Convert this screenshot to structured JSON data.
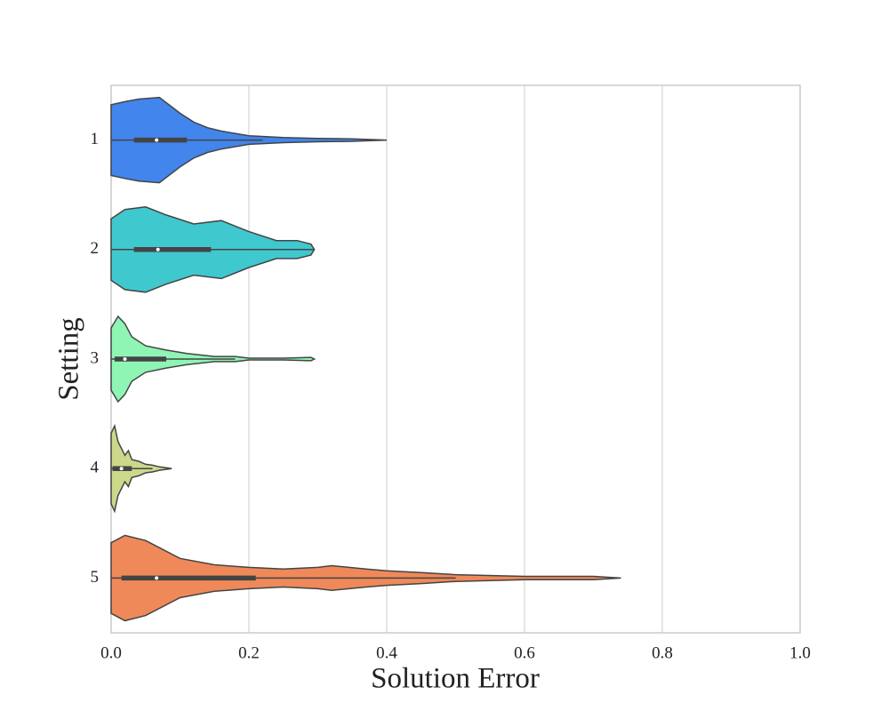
{
  "chart_data": {
    "type": "violin",
    "orientation": "horizontal",
    "xlabel": "Solution Error",
    "ylabel": "Setting",
    "categories": [
      "1",
      "2",
      "3",
      "4",
      "5"
    ],
    "xlim": [
      0,
      1
    ],
    "xticks": [
      {
        "value": 0,
        "label": "0.0"
      },
      {
        "value": 0.2,
        "label": "0.2"
      },
      {
        "value": 0.4,
        "label": "0.4"
      },
      {
        "value": 0.6,
        "label": "0.6"
      },
      {
        "value": 0.8,
        "label": "0.8"
      },
      {
        "value": 1,
        "label": "1.0"
      }
    ],
    "grid": true,
    "violins": [
      {
        "color": "#4285ec",
        "x": [
          0,
          0.02,
          0.04,
          0.07,
          0.1,
          0.12,
          0.14,
          0.16,
          0.2,
          0.25,
          0.3,
          0.35,
          0.4
        ],
        "density": [
          0.83,
          0.9,
          0.96,
          1,
          0.63,
          0.42,
          0.29,
          0.21,
          0.1,
          0.06,
          0.04,
          0.03,
          0
        ],
        "whisker": [
          0,
          0.22
        ],
        "q1": 0.033,
        "median": 0.066,
        "q3": 0.11
      },
      {
        "color": "#40c8cf",
        "x": [
          0,
          0.02,
          0.05,
          0.08,
          0.12,
          0.16,
          0.2,
          0.24,
          0.27,
          0.29,
          0.295
        ],
        "density": [
          0.72,
          0.94,
          1,
          0.81,
          0.6,
          0.68,
          0.42,
          0.21,
          0.21,
          0.13,
          0
        ],
        "whisker": [
          0,
          0.295
        ],
        "q1": 0.033,
        "median": 0.068,
        "q3": 0.145
      },
      {
        "color": "#8ef5b4",
        "x": [
          0,
          0.01,
          0.02,
          0.03,
          0.05,
          0.08,
          0.11,
          0.15,
          0.18,
          0.2,
          0.25,
          0.29,
          0.295
        ],
        "density": [
          0.73,
          1,
          0.83,
          0.52,
          0.31,
          0.21,
          0.13,
          0.06,
          0.06,
          0.02,
          0.02,
          0.04,
          0
        ],
        "whisker": [
          0,
          0.18
        ],
        "q1": 0.005,
        "median": 0.02,
        "q3": 0.08
      },
      {
        "color": "#cdd88b",
        "x": [
          0,
          0.005,
          0.01,
          0.02,
          0.025,
          0.03,
          0.04,
          0.05,
          0.06,
          0.07,
          0.088
        ],
        "density": [
          0.83,
          1,
          0.63,
          0.31,
          0.42,
          0.21,
          0.17,
          0.1,
          0.08,
          0.04,
          0
        ],
        "whisker": [
          0,
          0.06
        ],
        "q1": 0.002,
        "median": 0.015,
        "q3": 0.03
      },
      {
        "color": "#ef8959",
        "x": [
          0,
          0.02,
          0.05,
          0.1,
          0.15,
          0.2,
          0.25,
          0.3,
          0.32,
          0.37,
          0.4,
          0.45,
          0.5,
          0.6,
          0.7,
          0.74
        ],
        "density": [
          0.83,
          1,
          0.88,
          0.46,
          0.31,
          0.25,
          0.21,
          0.25,
          0.29,
          0.21,
          0.17,
          0.13,
          0.08,
          0.04,
          0.04,
          0
        ],
        "whisker": [
          0,
          0.5
        ],
        "q1": 0.015,
        "median": 0.066,
        "q3": 0.21
      }
    ]
  }
}
